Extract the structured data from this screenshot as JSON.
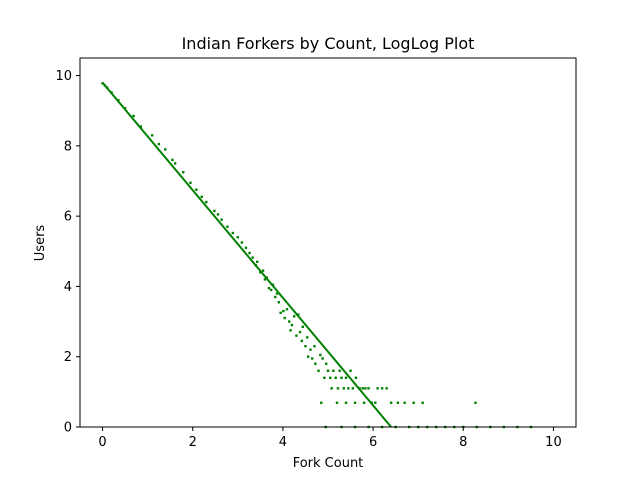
{
  "chart_data": {
    "type": "scatter",
    "title": "Indian Forkers by Count, LogLog Plot",
    "xlabel": "Fork Count",
    "ylabel": "Users",
    "xlim": [
      -0.5,
      10.5
    ],
    "ylim": [
      0,
      10.5
    ],
    "xticks": [
      0,
      2,
      4,
      6,
      8,
      10
    ],
    "yticks": [
      0,
      2,
      4,
      6,
      8,
      10
    ],
    "grid": false,
    "color": "#008000",
    "fit_line": {
      "x": [
        0,
        6.4
      ],
      "y": [
        9.8,
        0
      ]
    },
    "series": [
      {
        "points": [
          [
            0.0,
            9.78
          ],
          [
            0.05,
            9.72
          ],
          [
            0.1,
            9.66
          ],
          [
            0.2,
            9.52
          ],
          [
            0.35,
            9.3
          ],
          [
            0.5,
            9.07
          ],
          [
            0.69,
            8.85
          ],
          [
            0.85,
            8.55
          ],
          [
            1.1,
            8.3
          ],
          [
            1.25,
            8.05
          ],
          [
            1.39,
            7.9
          ],
          [
            1.55,
            7.6
          ],
          [
            1.61,
            7.5
          ],
          [
            1.79,
            7.25
          ],
          [
            1.95,
            6.95
          ],
          [
            2.08,
            6.75
          ],
          [
            2.2,
            6.55
          ],
          [
            2.3,
            6.4
          ],
          [
            2.48,
            6.15
          ],
          [
            2.56,
            6.05
          ],
          [
            2.64,
            5.9
          ],
          [
            2.77,
            5.7
          ],
          [
            2.89,
            5.52
          ],
          [
            3.0,
            5.4
          ],
          [
            3.09,
            5.25
          ],
          [
            3.18,
            5.1
          ],
          [
            3.26,
            4.95
          ],
          [
            3.33,
            4.82
          ],
          [
            3.4,
            4.6
          ],
          [
            3.43,
            4.7
          ],
          [
            3.5,
            4.4
          ],
          [
            3.56,
            4.45
          ],
          [
            3.6,
            4.2
          ],
          [
            3.64,
            4.25
          ],
          [
            3.69,
            3.95
          ],
          [
            3.74,
            3.9
          ],
          [
            3.78,
            4.05
          ],
          [
            3.83,
            3.7
          ],
          [
            3.87,
            3.8
          ],
          [
            3.91,
            3.55
          ],
          [
            3.95,
            3.25
          ],
          [
            4.01,
            3.3
          ],
          [
            4.04,
            3.1
          ],
          [
            4.09,
            3.35
          ],
          [
            4.14,
            3.0
          ],
          [
            4.17,
            2.75
          ],
          [
            4.2,
            2.9
          ],
          [
            4.25,
            3.15
          ],
          [
            4.3,
            2.6
          ],
          [
            4.34,
            3.2
          ],
          [
            4.38,
            2.7
          ],
          [
            4.42,
            2.45
          ],
          [
            4.44,
            2.85
          ],
          [
            4.5,
            2.3
          ],
          [
            4.54,
            2.55
          ],
          [
            4.56,
            2.0
          ],
          [
            4.61,
            2.2
          ],
          [
            4.65,
            1.95
          ],
          [
            4.7,
            2.3
          ],
          [
            4.72,
            1.8
          ],
          [
            4.79,
            1.6
          ],
          [
            4.83,
            2.05
          ],
          [
            4.88,
            1.95
          ],
          [
            4.92,
            1.4
          ],
          [
            4.96,
            1.8
          ],
          [
            5.0,
            1.6
          ],
          [
            5.05,
            1.4
          ],
          [
            5.08,
            1.1
          ],
          [
            5.12,
            1.6
          ],
          [
            5.17,
            1.4
          ],
          [
            5.22,
            1.1
          ],
          [
            5.26,
            1.6
          ],
          [
            5.3,
            1.4
          ],
          [
            5.35,
            1.1
          ],
          [
            5.4,
            1.4
          ],
          [
            5.45,
            1.1
          ],
          [
            5.5,
            1.6
          ],
          [
            5.55,
            1.1
          ],
          [
            5.62,
            1.4
          ],
          [
            5.7,
            1.1
          ],
          [
            5.77,
            1.1
          ],
          [
            5.83,
            1.1
          ],
          [
            5.9,
            1.1
          ],
          [
            5.97,
            0.69
          ],
          [
            6.05,
            0.69
          ],
          [
            6.1,
            1.1
          ],
          [
            6.2,
            1.1
          ],
          [
            6.3,
            1.1
          ],
          [
            6.4,
            0.69
          ],
          [
            6.55,
            0.69
          ],
          [
            6.7,
            0.69
          ],
          [
            6.9,
            0.69
          ],
          [
            7.1,
            0.69
          ],
          [
            4.85,
            0.69
          ],
          [
            5.2,
            0.69
          ],
          [
            5.4,
            0.69
          ],
          [
            5.6,
            0.69
          ],
          [
            5.8,
            0.69
          ],
          [
            8.27,
            0.69
          ],
          [
            4.95,
            0.0
          ],
          [
            5.3,
            0.0
          ],
          [
            5.6,
            0.0
          ],
          [
            5.9,
            0.0
          ],
          [
            6.2,
            0.0
          ],
          [
            6.5,
            0.0
          ],
          [
            6.8,
            0.0
          ],
          [
            7.0,
            0.0
          ],
          [
            7.2,
            0.0
          ],
          [
            7.4,
            0.0
          ],
          [
            7.6,
            0.0
          ],
          [
            7.8,
            0.0
          ],
          [
            8.0,
            0.0
          ],
          [
            8.3,
            0.0
          ],
          [
            8.6,
            0.0
          ],
          [
            8.9,
            0.0
          ],
          [
            9.2,
            0.0
          ],
          [
            9.5,
            0.0
          ]
        ]
      }
    ]
  }
}
